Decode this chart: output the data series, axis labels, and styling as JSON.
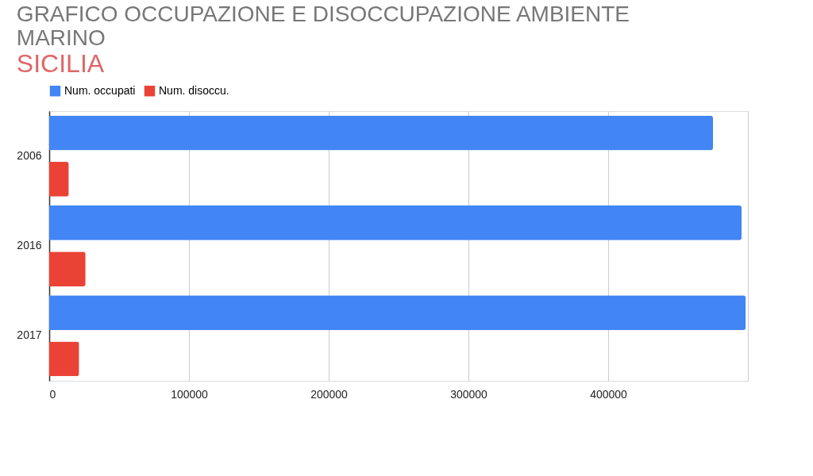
{
  "chart_data": {
    "type": "bar",
    "orientation": "horizontal",
    "title": "GRAFICO OCCUPAZIONE E DISOCCUPAZIONE AMBIENTE MARINO",
    "subtitle": "SICILIA",
    "categories": [
      "2006",
      "2016",
      "2017"
    ],
    "series": [
      {
        "name": "Num. occupati",
        "color": "#4285f4",
        "values": [
          475000,
          495500,
          498500
        ]
      },
      {
        "name": "Num. disoccu.",
        "color": "#ea4335",
        "values": [
          14000,
          26000,
          21400
        ]
      }
    ],
    "xlim": [
      0,
      500000
    ],
    "xticks": [
      0,
      100000,
      200000,
      300000,
      400000,
      {
        "value": 500000,
        "label": null
      }
    ],
    "grid": "x",
    "legend": "top"
  }
}
